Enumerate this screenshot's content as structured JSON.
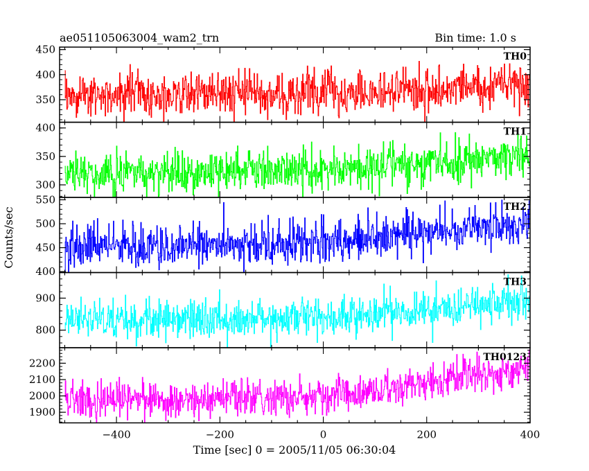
{
  "header": {
    "left": "ae051105063004_wam2_trn",
    "right": "Bin time: 1.0 s"
  },
  "chart_data": {
    "type": "line",
    "xlabel": "Time [sec] 0 = 2005/11/05 06:30:04",
    "ylabel": "Counts/sec",
    "xlim": [
      -510,
      400
    ],
    "x_ticks": [
      -400,
      -200,
      0,
      200,
      400
    ],
    "x_tick_labels": [
      "−400",
      "−200",
      "0",
      "200",
      "400"
    ],
    "bin_time_s": 1.0,
    "panels": [
      {
        "name": "TH0",
        "color": "#ff0000",
        "ylim": [
          305,
          455
        ],
        "yticks": [
          350,
          400,
          450
        ],
        "ytick_labels": [
          "350",
          "400",
          "450"
        ],
        "trend": [
          [
            -500,
            362
          ],
          [
            -200,
            363
          ],
          [
            0,
            364
          ],
          [
            200,
            370
          ],
          [
            400,
            385
          ]
        ],
        "noise": 21
      },
      {
        "name": "TH1",
        "color": "#00ff00",
        "ylim": [
          278,
          410
        ],
        "yticks": [
          300,
          350,
          400
        ],
        "ytick_labels": [
          "300",
          "350",
          "400"
        ],
        "trend": [
          [
            -500,
            320
          ],
          [
            -200,
            322
          ],
          [
            0,
            326
          ],
          [
            200,
            336
          ],
          [
            400,
            352
          ]
        ],
        "noise": 18
      },
      {
        "name": "TH2",
        "color": "#0000ff",
        "ylim": [
          398,
          555
        ],
        "yticks": [
          400,
          450,
          500,
          550
        ],
        "ytick_labels": [
          "400",
          "450",
          "500",
          "550"
        ],
        "trend": [
          [
            -500,
            452
          ],
          [
            -200,
            455
          ],
          [
            0,
            462
          ],
          [
            200,
            482
          ],
          [
            400,
            500
          ]
        ],
        "noise": 22
      },
      {
        "name": "TH3",
        "color": "#00ffff",
        "ylim": [
          745,
          980
        ],
        "yticks": [
          800,
          900
        ],
        "ytick_labels": [
          "800",
          "900"
        ],
        "trend": [
          [
            -500,
            830
          ],
          [
            -200,
            835
          ],
          [
            0,
            842
          ],
          [
            200,
            862
          ],
          [
            400,
            895
          ]
        ],
        "noise": 30
      },
      {
        "name": "TH0123",
        "color": "#ff00ff",
        "ylim": [
          1835,
          2295
        ],
        "yticks": [
          1900,
          2000,
          2100,
          2200
        ],
        "ytick_labels": [
          "1900",
          "2000",
          "2100",
          "2200"
        ],
        "trend": [
          [
            -500,
            1975
          ],
          [
            -200,
            1980
          ],
          [
            0,
            1995
          ],
          [
            100,
            2030
          ],
          [
            250,
            2100
          ],
          [
            400,
            2180
          ]
        ],
        "noise": 55
      }
    ]
  }
}
